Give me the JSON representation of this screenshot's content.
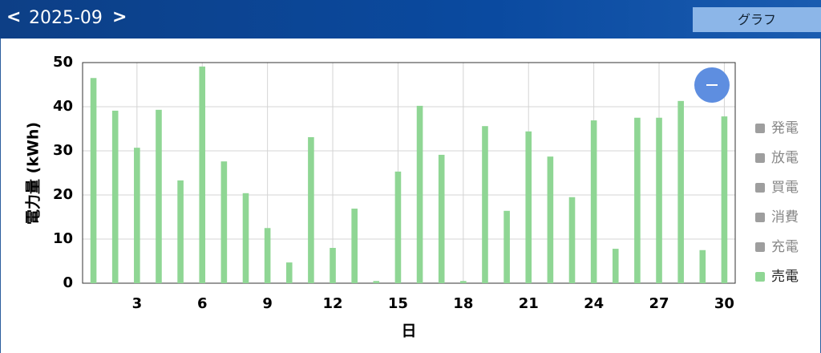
{
  "header": {
    "period": "2025-09",
    "view_button": "グラフ"
  },
  "chart_data": {
    "type": "bar",
    "x_label": "日",
    "y_label": "電力量 (kWh)",
    "x": [
      1,
      2,
      3,
      4,
      5,
      6,
      7,
      8,
      9,
      10,
      11,
      12,
      13,
      14,
      15,
      16,
      17,
      18,
      19,
      20,
      21,
      22,
      23,
      24,
      25,
      26,
      27,
      28,
      29,
      30
    ],
    "xlim": [
      0.5,
      30.5
    ],
    "xticks": [
      3,
      6,
      9,
      12,
      15,
      18,
      21,
      24,
      27,
      30
    ],
    "ylim": [
      0,
      50
    ],
    "yticks": [
      0,
      10,
      20,
      30,
      40,
      50
    ],
    "grid": true,
    "legend": "right",
    "series": [
      {
        "name": "発電",
        "color": "#9e9e9e",
        "visible": false
      },
      {
        "name": "放電",
        "color": "#9e9e9e",
        "visible": false
      },
      {
        "name": "買電",
        "color": "#9e9e9e",
        "visible": false
      },
      {
        "name": "消費",
        "color": "#9e9e9e",
        "visible": false
      },
      {
        "name": "充電",
        "color": "#9e9e9e",
        "visible": false
      },
      {
        "name": "売電",
        "color": "#8fd694",
        "visible": true,
        "values": [
          46.5,
          39.1,
          30.7,
          39.3,
          23.3,
          49.1,
          27.6,
          20.4,
          12.5,
          4.7,
          33.1,
          8.0,
          16.9,
          0.5,
          25.3,
          40.2,
          29.1,
          0.5,
          35.6,
          16.4,
          34.4,
          28.7,
          19.5,
          36.9,
          7.8,
          37.5,
          37.5,
          41.3,
          7.5,
          37.8
        ]
      }
    ]
  }
}
